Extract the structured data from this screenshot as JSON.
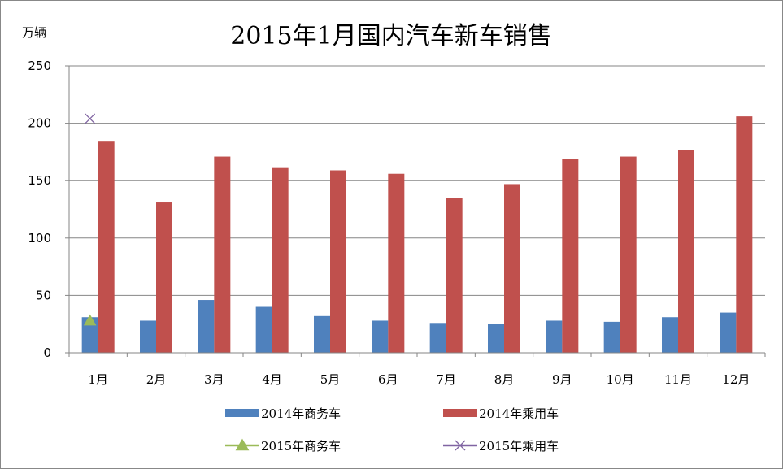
{
  "chart_data": {
    "type": "bar",
    "title": "2015年1月国内汽车新车销售",
    "unit_label": "万辆",
    "categories": [
      "1月",
      "2月",
      "3月",
      "4月",
      "5月",
      "6月",
      "7月",
      "8月",
      "9月",
      "10月",
      "11月",
      "12月"
    ],
    "ylim": [
      0,
      250
    ],
    "yticks": [
      "0",
      "50",
      "100",
      "150",
      "200",
      "250"
    ],
    "grid": true,
    "legend_position": "bottom",
    "series": [
      {
        "name": "2014年商务车",
        "kind": "bar",
        "color": "#4F81BD",
        "values": [
          31,
          28,
          46,
          40,
          32,
          28,
          26,
          25,
          28,
          27,
          31,
          35
        ]
      },
      {
        "name": "2014年乘用车",
        "kind": "bar",
        "color": "#C0504D",
        "values": [
          184,
          131,
          171,
          161,
          159,
          156,
          135,
          147,
          169,
          171,
          177,
          206
        ]
      },
      {
        "name": "2015年商务车",
        "kind": "marker",
        "marker": "triangle",
        "color": "#9BBB59",
        "values": [
          28,
          null,
          null,
          null,
          null,
          null,
          null,
          null,
          null,
          null,
          null,
          null
        ]
      },
      {
        "name": "2015年乘用车",
        "kind": "marker",
        "marker": "x",
        "color": "#8064A2",
        "values": [
          204,
          null,
          null,
          null,
          null,
          null,
          null,
          null,
          null,
          null,
          null,
          null
        ]
      }
    ]
  }
}
